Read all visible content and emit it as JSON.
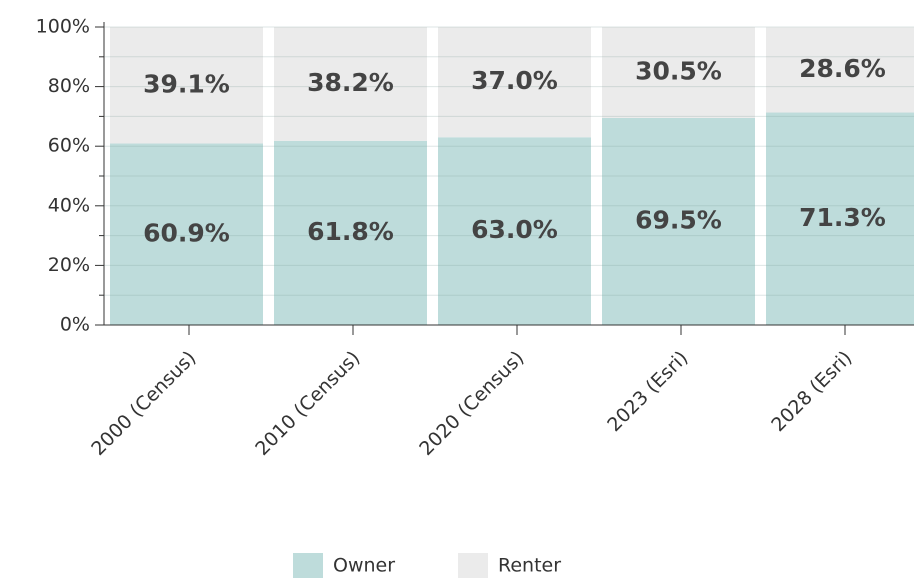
{
  "chart_data": {
    "type": "stacked_bar",
    "categories": [
      "2000 (Census)",
      "2010 (Census)",
      "2020 (Census)",
      "2023 (Esri)",
      "2028 (Esri)"
    ],
    "series": [
      {
        "name": "Owner",
        "color": "#bedcdb",
        "values": [
          60.9,
          61.8,
          63.0,
          69.5,
          71.3
        ],
        "value_labels": [
          "60.9%",
          "61.8%",
          "63.0%",
          "69.5%",
          "71.3%"
        ]
      },
      {
        "name": "Renter",
        "color": "#ebebeb",
        "values": [
          39.1,
          38.2,
          37.0,
          30.5,
          28.6
        ],
        "value_labels": [
          "39.1%",
          "38.2%",
          "37.0%",
          "30.5%",
          "28.6%"
        ]
      }
    ],
    "ylim": [
      0,
      100
    ],
    "yticks": [
      {
        "value": 0,
        "label": "0%"
      },
      {
        "value": 20,
        "label": "20%"
      },
      {
        "value": 40,
        "label": "40%"
      },
      {
        "value": 60,
        "label": "60%"
      },
      {
        "value": 80,
        "label": "80%"
      },
      {
        "value": 100,
        "label": "100%"
      }
    ],
    "yticks_minor": [
      10,
      30,
      50,
      70,
      90
    ],
    "grid": true,
    "legend": "bottom"
  }
}
